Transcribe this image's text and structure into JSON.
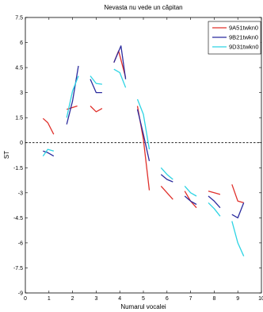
{
  "chart_data": {
    "type": "line",
    "title": "Nevasta nu vede un căpitan",
    "xlabel": "Numarul vocalei",
    "ylabel": "ST",
    "xlim": [
      0,
      10
    ],
    "ylim": [
      -9,
      7.5
    ],
    "xticks": [
      "0",
      "1",
      "2",
      "3",
      "4",
      "5",
      "6",
      "7",
      "8",
      "9",
      "10"
    ],
    "yticks": [
      "7.5",
      "6",
      "4.5",
      "3",
      "1.5",
      "0",
      "-1.5",
      "-3",
      "-4.5",
      "-6",
      "-7.5",
      "-9"
    ],
    "reference_line_y": 0,
    "legend_position": "top-right",
    "series": [
      {
        "name": "9A51twkn0",
        "color": "#e0302b",
        "segments": [
          [
            [
              0.75,
              1.45
            ],
            [
              0.95,
              1.2
            ],
            [
              1.2,
              0.5
            ]
          ],
          [
            [
              1.75,
              2.0
            ],
            [
              2.2,
              2.2
            ]
          ],
          [
            [
              2.75,
              2.2
            ],
            [
              3.0,
              1.85
            ],
            [
              3.25,
              2.05
            ]
          ],
          [
            [
              3.75,
              4.8
            ],
            [
              3.95,
              5.5
            ],
            [
              4.25,
              3.9
            ]
          ],
          [
            [
              4.75,
              2.2
            ],
            [
              5.0,
              0.2
            ],
            [
              5.25,
              -2.85
            ]
          ],
          [
            [
              5.75,
              -2.6
            ],
            [
              6.0,
              -3.0
            ],
            [
              6.25,
              -3.4
            ]
          ],
          [
            [
              6.75,
              -2.9
            ],
            [
              7.0,
              -3.5
            ],
            [
              7.25,
              -3.9
            ]
          ],
          [
            [
              7.75,
              -2.9
            ],
            [
              8.0,
              -3.0
            ],
            [
              8.25,
              -3.1
            ]
          ],
          [
            [
              8.75,
              -2.5
            ],
            [
              9.0,
              -3.5
            ],
            [
              9.25,
              -3.6
            ]
          ]
        ]
      },
      {
        "name": "9B21twkn0",
        "color": "#2b2b9e",
        "segments": [
          [
            [
              0.75,
              -0.5
            ],
            [
              0.95,
              -0.6
            ],
            [
              1.2,
              -0.8
            ]
          ],
          [
            [
              1.75,
              1.1
            ],
            [
              2.0,
              2.5
            ],
            [
              2.25,
              4.6
            ]
          ],
          [
            [
              2.75,
              3.8
            ],
            [
              3.0,
              3.0
            ],
            [
              3.25,
              3.0
            ]
          ],
          [
            [
              3.75,
              4.8
            ],
            [
              4.05,
              5.8
            ],
            [
              4.25,
              3.8
            ]
          ],
          [
            [
              4.75,
              2.0
            ],
            [
              5.0,
              0.5
            ],
            [
              5.25,
              -1.1
            ]
          ],
          [
            [
              5.75,
              -1.9
            ],
            [
              6.0,
              -2.2
            ],
            [
              6.25,
              -2.35
            ]
          ],
          [
            [
              6.75,
              -3.2
            ],
            [
              7.0,
              -3.5
            ],
            [
              7.25,
              -3.7
            ]
          ],
          [
            [
              7.75,
              -3.2
            ],
            [
              8.0,
              -3.5
            ],
            [
              8.25,
              -3.9
            ]
          ],
          [
            [
              8.75,
              -4.3
            ],
            [
              9.0,
              -4.5
            ],
            [
              9.25,
              -3.6
            ]
          ]
        ]
      },
      {
        "name": "9D31twkn0",
        "color": "#2dd4e4",
        "segments": [
          [
            [
              0.75,
              -0.8
            ],
            [
              0.95,
              -0.4
            ],
            [
              1.2,
              -0.5
            ]
          ],
          [
            [
              1.75,
              1.5
            ],
            [
              2.0,
              3.1
            ],
            [
              2.25,
              4.0
            ]
          ],
          [
            [
              2.75,
              4.0
            ],
            [
              3.0,
              3.55
            ],
            [
              3.25,
              3.5
            ]
          ],
          [
            [
              3.75,
              4.4
            ],
            [
              4.0,
              4.2
            ],
            [
              4.25,
              3.3
            ]
          ],
          [
            [
              4.75,
              2.6
            ],
            [
              5.0,
              1.7
            ],
            [
              5.25,
              -0.4
            ]
          ],
          [
            [
              5.75,
              -1.5
            ],
            [
              6.0,
              -1.9
            ],
            [
              6.25,
              -2.2
            ]
          ],
          [
            [
              6.75,
              -2.6
            ],
            [
              7.0,
              -3.0
            ],
            [
              7.25,
              -3.2
            ]
          ],
          [
            [
              7.75,
              -3.6
            ],
            [
              8.0,
              -3.95
            ],
            [
              8.25,
              -4.4
            ]
          ],
          [
            [
              8.75,
              -4.7
            ],
            [
              9.0,
              -6.0
            ],
            [
              9.25,
              -6.8
            ]
          ]
        ]
      }
    ]
  }
}
